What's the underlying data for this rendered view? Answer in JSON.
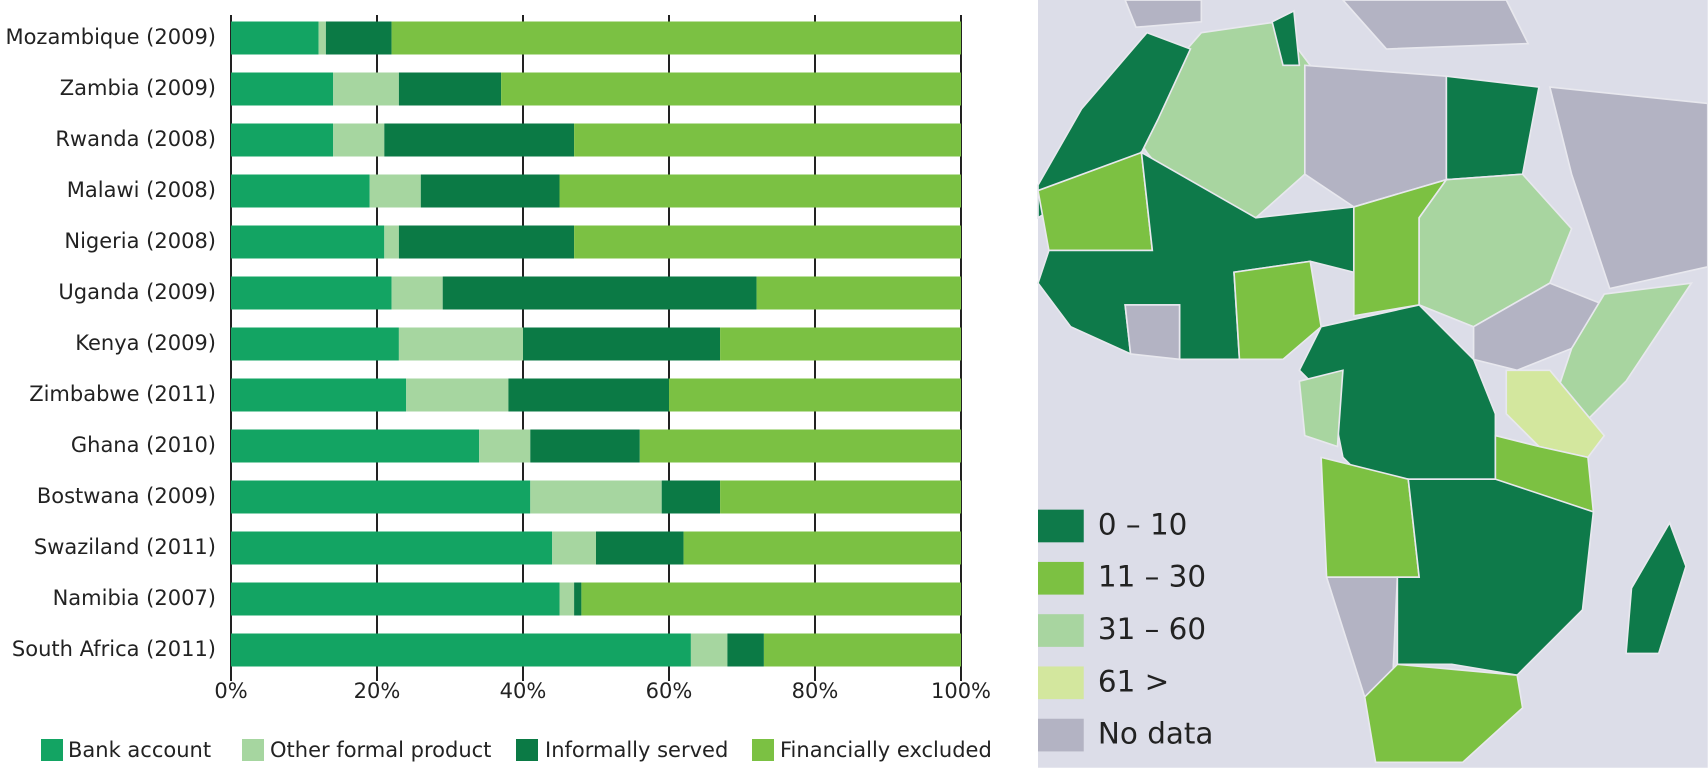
{
  "chart_data": {
    "type": "bar",
    "orientation": "horizontal",
    "stacked": true,
    "categories": [
      "Mozambique (2009)",
      "Zambia (2009)",
      "Rwanda (2008)",
      "Malawi (2008)",
      "Nigeria (2008)",
      "Uganda (2009)",
      "Kenya (2009)",
      "Zimbabwe (2011)",
      "Ghana (2010)",
      "Bostwana (2009)",
      "Swaziland (2011)",
      "Namibia (2007)",
      "South Africa (2011)"
    ],
    "series": [
      {
        "name": "Bank account",
        "color": "#13a463",
        "values": [
          12,
          14,
          14,
          19,
          21,
          22,
          23,
          24,
          34,
          41,
          44,
          45,
          63
        ]
      },
      {
        "name": "Other formal product",
        "color": "#a6d6a0",
        "values": [
          1,
          9,
          7,
          7,
          2,
          7,
          17,
          14,
          7,
          18,
          6,
          2,
          5
        ]
      },
      {
        "name": "Informally served",
        "color": "#0b7a45",
        "values": [
          9,
          14,
          26,
          19,
          24,
          43,
          27,
          22,
          15,
          8,
          12,
          1,
          5
        ]
      },
      {
        "name": "Financially excluded",
        "color": "#7bc143",
        "values": [
          78,
          63,
          53,
          55,
          53,
          28,
          33,
          40,
          44,
          33,
          38,
          52,
          27
        ]
      }
    ],
    "xlim": [
      0,
      100
    ],
    "xticks": [
      {
        "value": 0,
        "label": "0%"
      },
      {
        "value": 20,
        "label": "20%"
      },
      {
        "value": 40,
        "label": "40%"
      },
      {
        "value": 60,
        "label": "60%"
      },
      {
        "value": 80,
        "label": "80%"
      },
      {
        "value": 100,
        "label": "100%"
      }
    ],
    "grid": true,
    "legend": "bottom"
  },
  "map": {
    "legend": [
      {
        "label": "0 – 10",
        "color": "#0e7a4a"
      },
      {
        "label": "11 – 30",
        "color": "#7cc142"
      },
      {
        "label": "31 – 60",
        "color": "#a8d5a0"
      },
      {
        "label": "61 >",
        "color": "#d3e79e"
      },
      {
        "label": "No data",
        "color": "#b3b3c3"
      }
    ]
  }
}
